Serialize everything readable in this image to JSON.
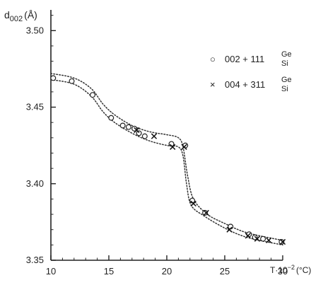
{
  "chart_data": {
    "type": "scatter",
    "ylabel": "d",
    "ylabel_sub": "002",
    "ylabel_unit": "(Å)",
    "xlabel": "T·10",
    "xlabel_exp": "−2",
    "xlabel_unit": "(°C)",
    "xlim": [
      10,
      30
    ],
    "ylim": [
      3.35,
      3.52
    ],
    "xticks": [
      "10",
      "15",
      "20",
      "25",
      "30"
    ],
    "yticks": [
      "3.35",
      "3.40",
      "3.45",
      "3.50"
    ],
    "legend_position": "top-right",
    "series": [
      {
        "name": "002 + 111",
        "sub_top": "Ge",
        "sub_bottom": "Si",
        "marker": "circle",
        "legend_symbol": "○",
        "points": [
          [
            10.2,
            3.469
          ],
          [
            11.8,
            3.467
          ],
          [
            13.6,
            3.458
          ],
          [
            15.2,
            3.443
          ],
          [
            16.2,
            3.438
          ],
          [
            16.7,
            3.437
          ],
          [
            17.2,
            3.436
          ],
          [
            17.6,
            3.433
          ],
          [
            18.1,
            3.431
          ],
          [
            20.4,
            3.426
          ],
          [
            21.6,
            3.425
          ],
          [
            22.2,
            3.389
          ],
          [
            23.3,
            3.381
          ],
          [
            25.5,
            3.372
          ],
          [
            27.1,
            3.367
          ],
          [
            27.6,
            3.365
          ],
          [
            28.3,
            3.364
          ],
          [
            29.9,
            3.362
          ]
        ]
      },
      {
        "name": "004 + 311",
        "sub_top": "Ge",
        "sub_bottom": "Si",
        "marker": "x",
        "legend_symbol": "×",
        "points": [
          [
            17.4,
            3.435
          ],
          [
            18.9,
            3.431
          ],
          [
            20.5,
            3.424
          ],
          [
            21.5,
            3.424
          ],
          [
            22.3,
            3.387
          ],
          [
            23.4,
            3.381
          ],
          [
            25.4,
            3.37
          ],
          [
            27.0,
            3.366
          ],
          [
            27.8,
            3.364
          ],
          [
            28.8,
            3.363
          ],
          [
            30.0,
            3.362
          ]
        ]
      }
    ],
    "bands": [
      {
        "name": "upper",
        "points": [
          [
            10,
            3.472
          ],
          [
            12,
            3.469
          ],
          [
            13.5,
            3.462
          ],
          [
            14.5,
            3.452
          ],
          [
            15.5,
            3.445
          ],
          [
            17,
            3.438
          ],
          [
            18.5,
            3.434
          ],
          [
            20,
            3.432
          ],
          [
            21,
            3.43
          ],
          [
            21.4,
            3.424
          ],
          [
            21.8,
            3.405
          ],
          [
            22.3,
            3.39
          ],
          [
            23.5,
            3.38
          ],
          [
            25,
            3.374
          ],
          [
            26.5,
            3.369
          ],
          [
            28,
            3.366
          ],
          [
            30,
            3.363
          ]
        ]
      },
      {
        "name": "lower",
        "points": [
          [
            10,
            3.468
          ],
          [
            12,
            3.465
          ],
          [
            13.5,
            3.457
          ],
          [
            14.5,
            3.447
          ],
          [
            15.5,
            3.44
          ],
          [
            17,
            3.433
          ],
          [
            18.5,
            3.428
          ],
          [
            20,
            3.425
          ],
          [
            21,
            3.424
          ],
          [
            21.4,
            3.418
          ],
          [
            21.7,
            3.4
          ],
          [
            22.1,
            3.386
          ],
          [
            23.2,
            3.379
          ],
          [
            25,
            3.371
          ],
          [
            26.5,
            3.366
          ],
          [
            28,
            3.363
          ],
          [
            30,
            3.36
          ]
        ]
      }
    ]
  }
}
